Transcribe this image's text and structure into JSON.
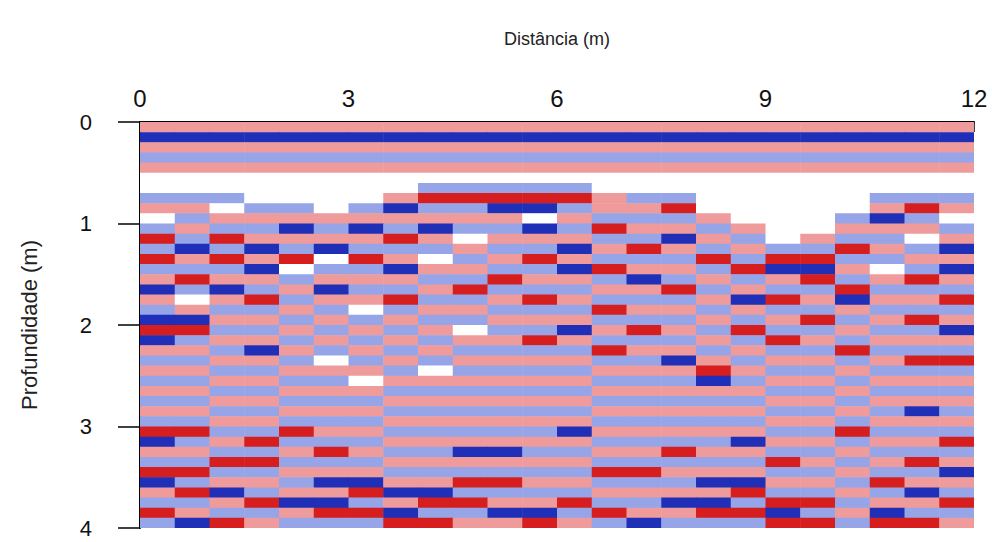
{
  "chart_data": {
    "type": "heatmap",
    "xlabel": "Distância (m)",
    "ylabel": "Profundidade (m)",
    "xlim": [
      0,
      12
    ],
    "xticks": [
      0,
      3,
      6,
      9,
      12
    ],
    "ylim": [
      0,
      4
    ],
    "yticks": [
      0,
      1,
      2,
      3,
      4
    ],
    "zlim": [
      -2,
      2
    ],
    "x": [
      0.25,
      0.75,
      1.25,
      1.75,
      2.25,
      2.75,
      3.25,
      3.75,
      4.25,
      4.75,
      5.25,
      5.75,
      6.25,
      6.75,
      7.25,
      7.75,
      8.25,
      8.75,
      9.25,
      9.75,
      10.25,
      10.75,
      11.25,
      11.75
    ],
    "y": [
      0.05,
      0.15,
      0.25,
      0.35,
      0.45,
      0.55,
      0.65,
      0.75,
      0.85,
      0.95,
      1.05,
      1.15,
      1.25,
      1.35,
      1.45,
      1.55,
      1.65,
      1.75,
      1.85,
      1.95,
      2.05,
      2.15,
      2.25,
      2.35,
      2.45,
      2.55,
      2.65,
      2.75,
      2.85,
      2.95,
      3.05,
      3.15,
      3.25,
      3.35,
      3.45,
      3.55,
      3.65,
      3.75,
      3.85,
      3.95
    ],
    "z": [
      [
        1,
        1,
        1,
        1,
        1,
        1,
        1,
        1,
        1,
        1,
        1,
        1,
        1,
        1,
        1,
        1,
        1,
        1,
        1,
        1,
        1,
        1,
        1,
        1
      ],
      [
        -2,
        -2,
        -2,
        -2,
        -2,
        -2,
        -2,
        -2,
        -2,
        -2,
        -2,
        -2,
        -2,
        -2,
        -2,
        -2,
        -2,
        -2,
        -2,
        -2,
        -2,
        -2,
        -2,
        -2
      ],
      [
        1,
        1,
        1,
        1,
        1,
        1,
        1,
        1,
        1,
        1,
        1,
        1,
        1,
        1,
        1,
        1,
        1,
        1,
        1,
        1,
        1,
        1,
        1,
        1
      ],
      [
        -1,
        -1,
        -1,
        -1,
        -1,
        -1,
        -1,
        -1,
        -1,
        -1,
        -1,
        -1,
        -1,
        -1,
        -1,
        -1,
        -1,
        -1,
        -1,
        -1,
        -1,
        -1,
        -1,
        -1
      ],
      [
        1,
        1,
        1,
        1,
        1,
        1,
        1,
        1,
        1,
        1,
        1,
        1,
        1,
        1,
        1,
        1,
        1,
        1,
        1,
        1,
        1,
        1,
        1,
        1
      ],
      [
        0,
        0,
        0,
        0,
        0,
        0,
        0,
        0,
        0,
        0,
        0,
        0,
        0,
        0,
        0,
        0,
        0,
        0,
        0,
        0,
        0,
        0,
        0,
        0
      ],
      [
        0,
        0,
        0,
        0,
        0,
        0,
        0,
        0,
        -1,
        -1,
        -1,
        -1,
        -1,
        0,
        0,
        0,
        0,
        0,
        0,
        0,
        0,
        0,
        0,
        0
      ],
      [
        -1,
        -1,
        -1,
        0,
        0,
        0,
        0,
        1,
        2,
        2,
        2,
        2,
        2,
        1,
        -1,
        -1,
        0,
        0,
        0,
        0,
        0,
        -1,
        -1,
        -1
      ],
      [
        1,
        1,
        0,
        -1,
        -1,
        0,
        -1,
        -2,
        -1,
        -1,
        -2,
        -2,
        -1,
        1,
        1,
        2,
        0,
        0,
        0,
        0,
        0,
        1,
        2,
        1
      ],
      [
        0,
        -1,
        1,
        1,
        1,
        1,
        1,
        1,
        1,
        1,
        1,
        0,
        1,
        -1,
        -1,
        -1,
        1,
        0,
        0,
        0,
        -1,
        -2,
        -1,
        0
      ],
      [
        -1,
        1,
        -1,
        -1,
        -2,
        -1,
        -2,
        -1,
        -2,
        -1,
        -1,
        -2,
        -1,
        2,
        1,
        1,
        -1,
        1,
        0,
        0,
        1,
        1,
        1,
        -1
      ],
      [
        2,
        -1,
        2,
        1,
        1,
        1,
        1,
        2,
        1,
        0,
        1,
        1,
        1,
        -1,
        -1,
        -2,
        1,
        -1,
        0,
        1,
        -1,
        -1,
        0,
        1
      ],
      [
        -1,
        -2,
        -1,
        -2,
        -1,
        -2,
        -1,
        -1,
        -1,
        1,
        -1,
        -1,
        -2,
        1,
        2,
        1,
        -1,
        1,
        -1,
        -1,
        2,
        1,
        -1,
        -2
      ],
      [
        2,
        1,
        2,
        1,
        2,
        0,
        2,
        1,
        0,
        -1,
        1,
        2,
        1,
        -1,
        -1,
        -1,
        2,
        -1,
        2,
        2,
        -1,
        -1,
        1,
        1
      ],
      [
        -1,
        -1,
        -1,
        -2,
        0,
        -1,
        -1,
        -2,
        1,
        1,
        -1,
        -1,
        -2,
        2,
        1,
        1,
        -1,
        2,
        -2,
        -2,
        1,
        0,
        -1,
        -2
      ],
      [
        1,
        2,
        1,
        1,
        -1,
        1,
        1,
        1,
        -1,
        -1,
        2,
        1,
        1,
        -1,
        -2,
        -1,
        1,
        -1,
        1,
        2,
        -1,
        1,
        2,
        1
      ],
      [
        -2,
        -1,
        -2,
        -1,
        1,
        -2,
        -1,
        -1,
        1,
        2,
        -1,
        -1,
        -1,
        1,
        1,
        2,
        -1,
        1,
        -1,
        -1,
        2,
        -1,
        -1,
        -1
      ],
      [
        1,
        0,
        1,
        2,
        -1,
        1,
        1,
        2,
        -1,
        -1,
        1,
        2,
        1,
        -1,
        -1,
        -1,
        1,
        -2,
        2,
        1,
        -2,
        1,
        1,
        2
      ],
      [
        -1,
        1,
        -1,
        -1,
        1,
        -1,
        0,
        -1,
        1,
        1,
        -1,
        -1,
        -1,
        2,
        1,
        1,
        -1,
        1,
        -1,
        -1,
        1,
        -1,
        -1,
        -1
      ],
      [
        -2,
        -2,
        1,
        1,
        -1,
        1,
        -1,
        1,
        -1,
        -1,
        1,
        1,
        1,
        -1,
        -1,
        -1,
        1,
        -1,
        1,
        2,
        -1,
        1,
        2,
        1
      ],
      [
        2,
        2,
        -1,
        -1,
        1,
        -1,
        1,
        -1,
        1,
        0,
        -1,
        -1,
        -2,
        1,
        2,
        1,
        -1,
        2,
        -1,
        -1,
        1,
        -1,
        -1,
        -2
      ],
      [
        -2,
        -1,
        1,
        1,
        -1,
        1,
        -1,
        1,
        -1,
        1,
        1,
        2,
        1,
        -1,
        -1,
        -1,
        1,
        -1,
        2,
        1,
        -1,
        1,
        1,
        1
      ],
      [
        1,
        1,
        -1,
        -2,
        1,
        -1,
        1,
        -1,
        1,
        -1,
        -1,
        -1,
        -1,
        2,
        1,
        1,
        -1,
        1,
        -1,
        -1,
        2,
        -1,
        -1,
        -1
      ],
      [
        -1,
        -1,
        1,
        1,
        -1,
        0,
        -1,
        1,
        -1,
        1,
        1,
        1,
        1,
        -1,
        -1,
        -2,
        1,
        -1,
        1,
        1,
        -1,
        1,
        2,
        2
      ],
      [
        1,
        1,
        -1,
        -1,
        1,
        1,
        1,
        -1,
        0,
        -1,
        -1,
        -1,
        -1,
        1,
        1,
        1,
        2,
        1,
        -1,
        -1,
        1,
        -1,
        -1,
        -1
      ],
      [
        -1,
        -1,
        1,
        1,
        -1,
        -1,
        0,
        1,
        1,
        1,
        1,
        1,
        1,
        -1,
        -1,
        -1,
        -2,
        -1,
        1,
        1,
        -1,
        1,
        1,
        1
      ],
      [
        1,
        1,
        -1,
        -1,
        1,
        1,
        1,
        -1,
        -1,
        -1,
        -1,
        -1,
        -1,
        1,
        1,
        1,
        1,
        1,
        -1,
        -1,
        1,
        -1,
        -1,
        -1
      ],
      [
        -1,
        -1,
        1,
        1,
        -1,
        -1,
        -1,
        1,
        1,
        1,
        1,
        1,
        1,
        -1,
        -1,
        -1,
        -1,
        -1,
        1,
        1,
        -1,
        1,
        1,
        1
      ],
      [
        1,
        1,
        -1,
        -1,
        1,
        1,
        1,
        -1,
        -1,
        -1,
        -1,
        -1,
        -1,
        1,
        1,
        1,
        1,
        1,
        -1,
        -1,
        1,
        -1,
        -2,
        -1
      ],
      [
        -1,
        -1,
        1,
        1,
        -1,
        -1,
        -1,
        1,
        1,
        1,
        1,
        1,
        1,
        -1,
        -1,
        -1,
        -1,
        -1,
        1,
        1,
        -1,
        1,
        1,
        1
      ],
      [
        2,
        2,
        -1,
        -1,
        2,
        1,
        1,
        -1,
        -1,
        -1,
        -1,
        -1,
        -2,
        1,
        1,
        1,
        1,
        1,
        -1,
        -1,
        2,
        -1,
        -1,
        -1
      ],
      [
        -2,
        -1,
        1,
        2,
        -1,
        -1,
        -1,
        1,
        1,
        1,
        1,
        1,
        1,
        -1,
        -1,
        -1,
        -1,
        -2,
        1,
        1,
        -1,
        1,
        1,
        2
      ],
      [
        1,
        1,
        -1,
        -1,
        1,
        2,
        1,
        -1,
        -1,
        -2,
        -2,
        -1,
        -1,
        1,
        1,
        2,
        1,
        1,
        -1,
        -1,
        1,
        -1,
        -1,
        -1
      ],
      [
        -1,
        -1,
        2,
        2,
        -1,
        -1,
        -1,
        1,
        1,
        1,
        1,
        1,
        1,
        -1,
        -1,
        -1,
        -1,
        -1,
        2,
        1,
        -1,
        1,
        2,
        1
      ],
      [
        2,
        2,
        -1,
        -1,
        1,
        1,
        1,
        -1,
        -1,
        -1,
        -1,
        -1,
        -1,
        2,
        2,
        1,
        1,
        1,
        -1,
        -1,
        1,
        -1,
        -1,
        -2
      ],
      [
        -2,
        -1,
        1,
        1,
        -1,
        -2,
        -2,
        1,
        1,
        2,
        2,
        1,
        1,
        -1,
        -1,
        -1,
        -2,
        -2,
        1,
        1,
        -1,
        2,
        1,
        1
      ],
      [
        1,
        2,
        -2,
        -1,
        1,
        1,
        2,
        -2,
        -2,
        -1,
        -1,
        -1,
        -1,
        1,
        1,
        1,
        1,
        2,
        -1,
        -1,
        1,
        -1,
        -2,
        -1
      ],
      [
        -1,
        -1,
        1,
        2,
        -2,
        -2,
        -1,
        1,
        2,
        2,
        1,
        1,
        2,
        -1,
        -1,
        -2,
        -2,
        -1,
        2,
        2,
        -1,
        1,
        1,
        2
      ],
      [
        2,
        1,
        -1,
        -1,
        1,
        2,
        2,
        -2,
        -1,
        -1,
        -2,
        -2,
        -1,
        2,
        1,
        1,
        2,
        2,
        -2,
        -1,
        1,
        -2,
        -1,
        -1
      ],
      [
        -1,
        -2,
        2,
        1,
        -1,
        -1,
        -1,
        2,
        2,
        1,
        1,
        2,
        1,
        -1,
        -2,
        -1,
        -1,
        -1,
        2,
        2,
        -1,
        2,
        2,
        1
      ]
    ]
  }
}
